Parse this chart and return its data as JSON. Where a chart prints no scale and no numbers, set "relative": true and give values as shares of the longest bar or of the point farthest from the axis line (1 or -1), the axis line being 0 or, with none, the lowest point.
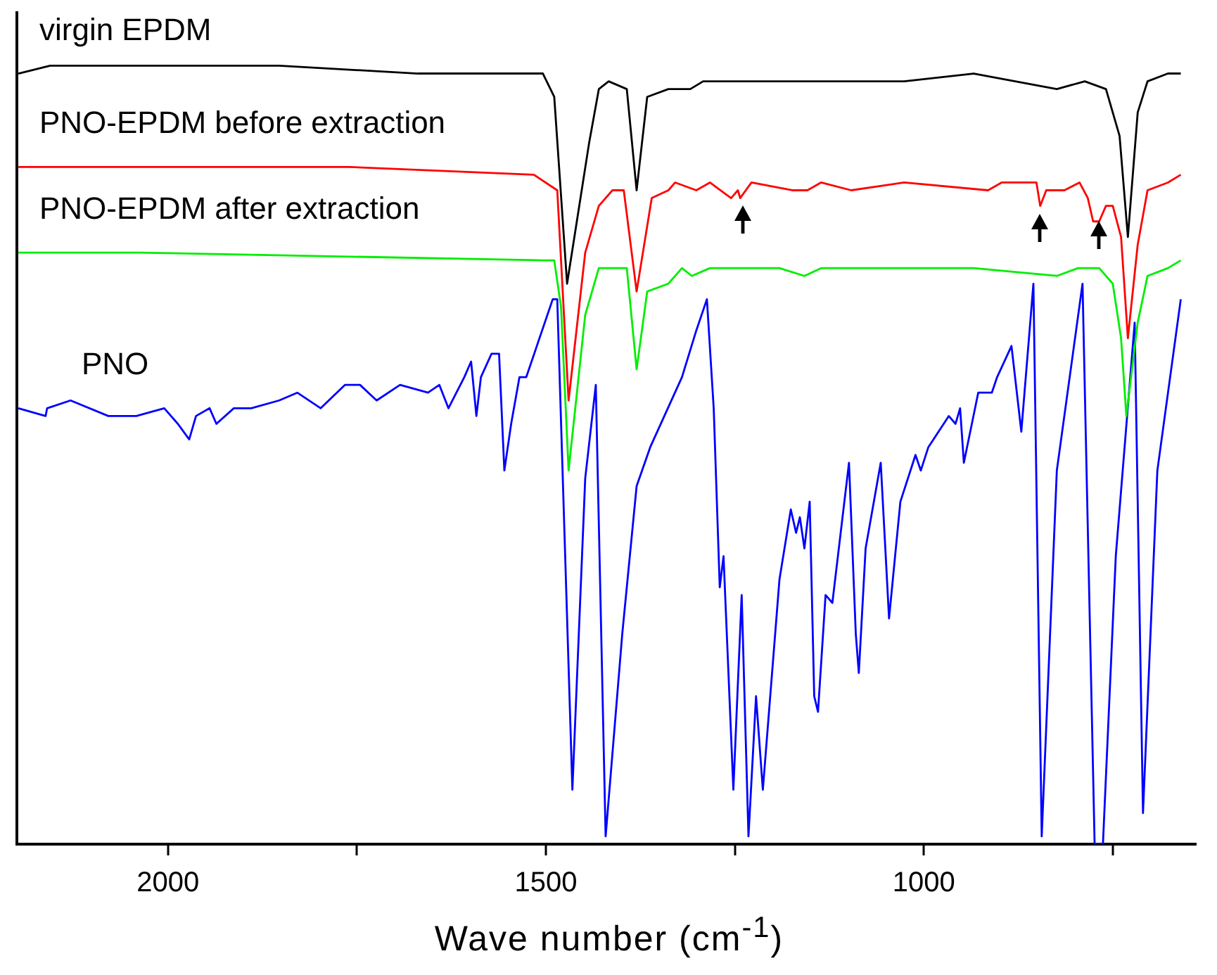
{
  "chart_data": {
    "type": "line",
    "xlabel": "Wave number (cm$^{-1}$)",
    "relative": true,
    "xlim": [
      2200,
      640
    ],
    "xticks": [
      2000,
      1500,
      1000,
      {
        "value": 1750,
        "label": null
      },
      {
        "value": 1250,
        "label": null
      },
      {
        "value": 750,
        "label": null
      }
    ],
    "series": [
      {
        "name": "virgin EPDM",
        "color": "#000000",
        "x": [
          2198,
          2156,
          2037,
          1853,
          1669,
          1577,
          1504,
          1489,
          1472,
          1443,
          1430,
          1417,
          1393,
          1380,
          1366,
          1338,
          1309,
          1292,
          1265,
          1191,
          1158,
          1136,
          1026,
          934,
          879,
          824,
          787,
          759,
          741,
          730,
          717,
          704,
          677,
          660
        ],
        "values": [
          0.99,
          1.0,
          1.0,
          1.0,
          0.99,
          0.99,
          0.99,
          0.96,
          0.72,
          0.9,
          0.97,
          0.98,
          0.97,
          0.84,
          0.96,
          0.97,
          0.97,
          0.98,
          0.98,
          0.98,
          0.98,
          0.98,
          0.98,
          0.99,
          0.98,
          0.97,
          0.98,
          0.97,
          0.91,
          0.78,
          0.94,
          0.98,
          0.99,
          0.99
        ]
      },
      {
        "name": "PNO-EPDM before extraction",
        "color": "#ff0000",
        "x": [
          2198,
          2037,
          1761,
          1516,
          1485,
          1470,
          1448,
          1430,
          1412,
          1397,
          1380,
          1360,
          1338,
          1329,
          1301,
          1283,
          1255,
          1246,
          1243,
          1228,
          1173,
          1154,
          1136,
          1096,
          1026,
          915,
          897,
          851,
          846,
          838,
          814,
          794,
          783,
          776,
          768,
          759,
          750,
          739,
          730,
          717,
          704,
          677,
          660
        ],
        "values": [
          0.87,
          0.87,
          0.87,
          0.86,
          0.84,
          0.57,
          0.76,
          0.82,
          0.84,
          0.84,
          0.71,
          0.83,
          0.84,
          0.85,
          0.84,
          0.85,
          0.83,
          0.84,
          0.83,
          0.85,
          0.84,
          0.84,
          0.85,
          0.84,
          0.85,
          0.84,
          0.85,
          0.85,
          0.82,
          0.84,
          0.84,
          0.85,
          0.83,
          0.8,
          0.8,
          0.82,
          0.82,
          0.78,
          0.65,
          0.77,
          0.84,
          0.85,
          0.86
        ]
      },
      {
        "name": "PNO-EPDM after extraction",
        "color": "#00ee00",
        "x": [
          2198,
          2037,
          1504,
          1489,
          1480,
          1470,
          1448,
          1430,
          1412,
          1393,
          1380,
          1366,
          1338,
          1320,
          1307,
          1283,
          1246,
          1191,
          1158,
          1136,
          1026,
          934,
          824,
          796,
          768,
          750,
          739,
          732,
          717,
          704,
          677,
          660
        ],
        "values": [
          0.76,
          0.76,
          0.75,
          0.75,
          0.69,
          0.48,
          0.68,
          0.74,
          0.74,
          0.74,
          0.61,
          0.71,
          0.72,
          0.74,
          0.73,
          0.74,
          0.74,
          0.74,
          0.73,
          0.74,
          0.74,
          0.74,
          0.73,
          0.74,
          0.74,
          0.72,
          0.65,
          0.55,
          0.67,
          0.73,
          0.74,
          0.75
        ]
      },
      {
        "name": "PNO",
        "color": "#0000ff",
        "x": [
          2198,
          2162,
          2160,
          2129,
          2079,
          2061,
          2042,
          2005,
          1987,
          1972,
          1963,
          1945,
          1936,
          1913,
          1890,
          1853,
          1829,
          1798,
          1766,
          1746,
          1724,
          1693,
          1656,
          1641,
          1629,
          1608,
          1599,
          1592,
          1586,
          1572,
          1562,
          1555,
          1546,
          1535,
          1526,
          1491,
          1485,
          1465,
          1448,
          1434,
          1421,
          1399,
          1380,
          1362,
          1320,
          1301,
          1287,
          1278,
          1270,
          1265,
          1252,
          1241,
          1232,
          1222,
          1213,
          1191,
          1176,
          1169,
          1164,
          1158,
          1151,
          1145,
          1140,
          1130,
          1121,
          1099,
          1090,
          1086,
          1077,
          1057,
          1046,
          1031,
          1011,
          1004,
          994,
          967,
          958,
          952,
          947,
          928,
          910,
          903,
          884,
          871,
          855,
          844,
          824,
          790,
          774,
          763,
          746,
          721,
          710,
          691,
          660
        ],
        "values": [
          0.56,
          0.55,
          0.56,
          0.57,
          0.55,
          0.55,
          0.55,
          0.56,
          0.54,
          0.52,
          0.55,
          0.56,
          0.54,
          0.56,
          0.56,
          0.57,
          0.58,
          0.56,
          0.59,
          0.59,
          0.57,
          0.59,
          0.58,
          0.59,
          0.56,
          0.6,
          0.62,
          0.55,
          0.6,
          0.63,
          0.63,
          0.48,
          0.54,
          0.6,
          0.6,
          0.7,
          0.7,
          0.07,
          0.47,
          0.59,
          0.01,
          0.27,
          0.46,
          0.51,
          0.6,
          0.66,
          0.7,
          0.56,
          0.33,
          0.37,
          0.07,
          0.32,
          0.01,
          0.19,
          0.07,
          0.34,
          0.43,
          0.4,
          0.42,
          0.38,
          0.44,
          0.19,
          0.17,
          0.32,
          0.31,
          0.49,
          0.27,
          0.22,
          0.38,
          0.49,
          0.29,
          0.44,
          0.5,
          0.48,
          0.51,
          0.55,
          0.54,
          0.56,
          0.49,
          0.58,
          0.58,
          0.6,
          0.64,
          0.53,
          0.72,
          0.01,
          0.48,
          0.72,
          0,
          0,
          0.37,
          0.67,
          0.04,
          0.48,
          0.7
        ]
      }
    ]
  }
}
